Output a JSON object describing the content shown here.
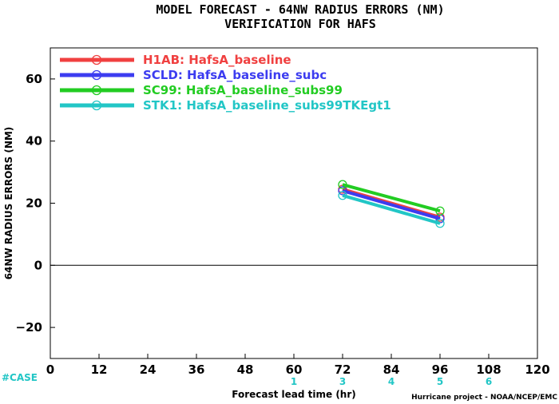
{
  "chart_data": {
    "type": "line",
    "title": "MODEL FORECAST - 64NW RADIUS ERRORS (NM)",
    "subtitle": "VERIFICATION FOR HAFS",
    "xlabel": "Forecast lead time (hr)",
    "ylabel": "64NW RADIUS ERRORS (NM)",
    "xlim": [
      0,
      120
    ],
    "ylim": [
      -30,
      70
    ],
    "xticks": [
      0,
      12,
      24,
      36,
      48,
      60,
      72,
      84,
      96,
      108,
      120
    ],
    "yticks": [
      -20,
      0,
      20,
      40,
      60
    ],
    "zero_line": true,
    "legend_position": "top-left",
    "series": [
      {
        "name": "H1AB: HafsA_baseline",
        "color": "#f04040",
        "x": [
          72,
          96
        ],
        "y": [
          24.5,
          15.5
        ]
      },
      {
        "name": "SCLD: HafsA_baseline_subc",
        "color": "#3c3cf0",
        "x": [
          72,
          96
        ],
        "y": [
          24.0,
          15.0
        ]
      },
      {
        "name": "SC99: HafsA_baseline_subs99",
        "color": "#22cc22",
        "x": [
          72,
          96
        ],
        "y": [
          26.0,
          17.5
        ]
      },
      {
        "name": "STK1: HafsA_baseline_subs99TKEgt1",
        "color": "#22c6c6",
        "x": [
          72,
          96
        ],
        "y": [
          22.5,
          13.5
        ]
      }
    ],
    "cases": {
      "label": "#CASE",
      "color": "#22c6c6",
      "x": [
        60,
        72,
        84,
        96,
        108
      ],
      "counts": [
        "1",
        "3",
        "4",
        "5",
        "6"
      ]
    },
    "credit": "Hurricane project - NOAA/NCEP/EMC"
  }
}
